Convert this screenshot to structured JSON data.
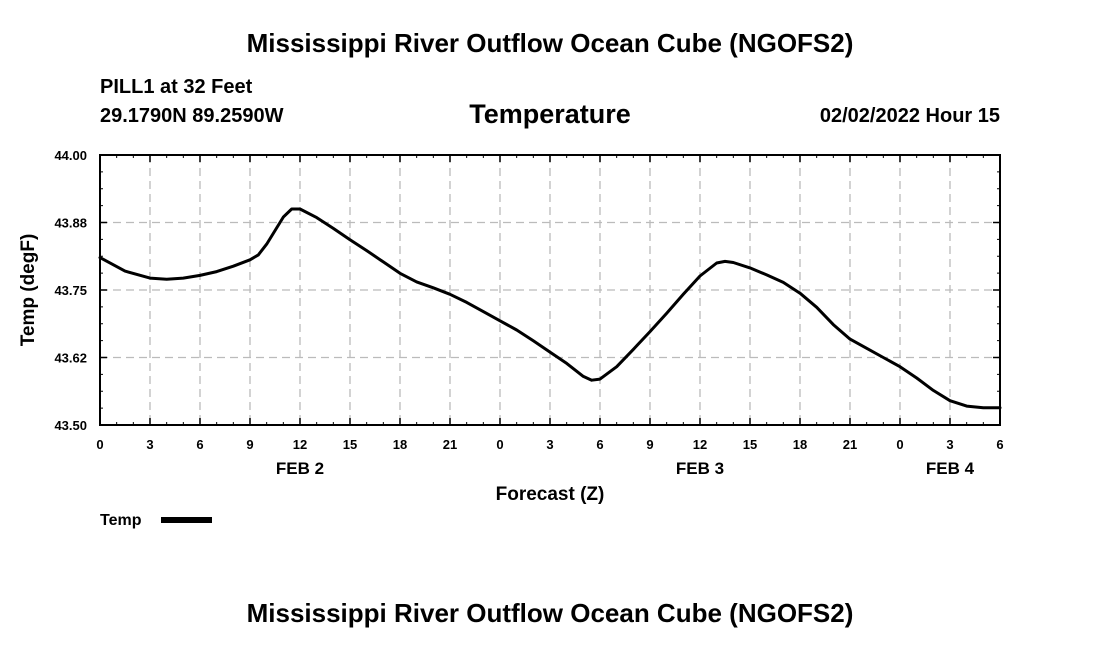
{
  "header": {
    "title": "Mississippi River Outflow Ocean Cube (NGOFS2)",
    "station": "PILL1 at 32 Feet",
    "coords": "29.1790N  89.2590W",
    "datetime": "02/02/2022 Hour 15"
  },
  "footer": {
    "title": "Mississippi River Outflow Ocean Cube (NGOFS2)"
  },
  "colors": {
    "line": "#000000",
    "grid": "#bbbbbb",
    "background": "#ffffff"
  },
  "chart_data": {
    "type": "line",
    "title": "Temperature",
    "xlabel": "Forecast (Z)",
    "ylabel": "Temp (degF)",
    "xlim": [
      0,
      54
    ],
    "ylim": [
      43.5,
      44.0
    ],
    "grid": true,
    "x_ticks": [
      0,
      3,
      6,
      9,
      12,
      15,
      18,
      21,
      24,
      27,
      30,
      33,
      36,
      39,
      42,
      45,
      48,
      51,
      54
    ],
    "x_tick_labels": [
      "0",
      "3",
      "6",
      "9",
      "12",
      "15",
      "18",
      "21",
      "0",
      "3",
      "6",
      "9",
      "12",
      "15",
      "18",
      "21",
      "0",
      "3",
      "6"
    ],
    "y_ticks": [
      43.5,
      43.625,
      43.75,
      43.875,
      44.0
    ],
    "y_tick_labels": [
      "43.50",
      "43.62",
      "43.75",
      "43.88",
      "44.00"
    ],
    "day_labels": [
      {
        "x": 12,
        "label": "FEB 2"
      },
      {
        "x": 36,
        "label": "FEB 3"
      },
      {
        "x": 51,
        "label": "FEB 4"
      }
    ],
    "legend": {
      "position": "bottom-left",
      "entries": [
        "Temp"
      ]
    },
    "series": [
      {
        "name": "Temp",
        "x": [
          0,
          1.5,
          3,
          4,
          5,
          6,
          7,
          8,
          9,
          9.5,
          10,
          10.5,
          11,
          11.5,
          12,
          13,
          14,
          15,
          16,
          17,
          18,
          19,
          20,
          21,
          22,
          23,
          24,
          25,
          26,
          27,
          28,
          29,
          29.5,
          30,
          31,
          32,
          33,
          34,
          35,
          36,
          37,
          37.5,
          38,
          39,
          40,
          41,
          42,
          43,
          44,
          45,
          46,
          47,
          48,
          49,
          50,
          51,
          52,
          53,
          54
        ],
        "values": [
          43.81,
          43.785,
          43.772,
          43.77,
          43.772,
          43.777,
          43.784,
          43.794,
          43.806,
          43.815,
          43.835,
          43.86,
          43.885,
          43.9,
          43.9,
          43.884,
          43.864,
          43.843,
          43.823,
          43.802,
          43.781,
          43.765,
          43.754,
          43.742,
          43.727,
          43.71,
          43.693,
          43.676,
          43.656,
          43.635,
          43.614,
          43.59,
          43.583,
          43.585,
          43.608,
          43.64,
          43.673,
          43.707,
          43.742,
          43.776,
          43.8,
          43.803,
          43.801,
          43.791,
          43.778,
          43.764,
          43.744,
          43.718,
          43.686,
          43.659,
          43.642,
          43.625,
          43.608,
          43.587,
          43.564,
          43.545,
          43.535,
          43.532,
          43.532
        ]
      }
    ]
  }
}
